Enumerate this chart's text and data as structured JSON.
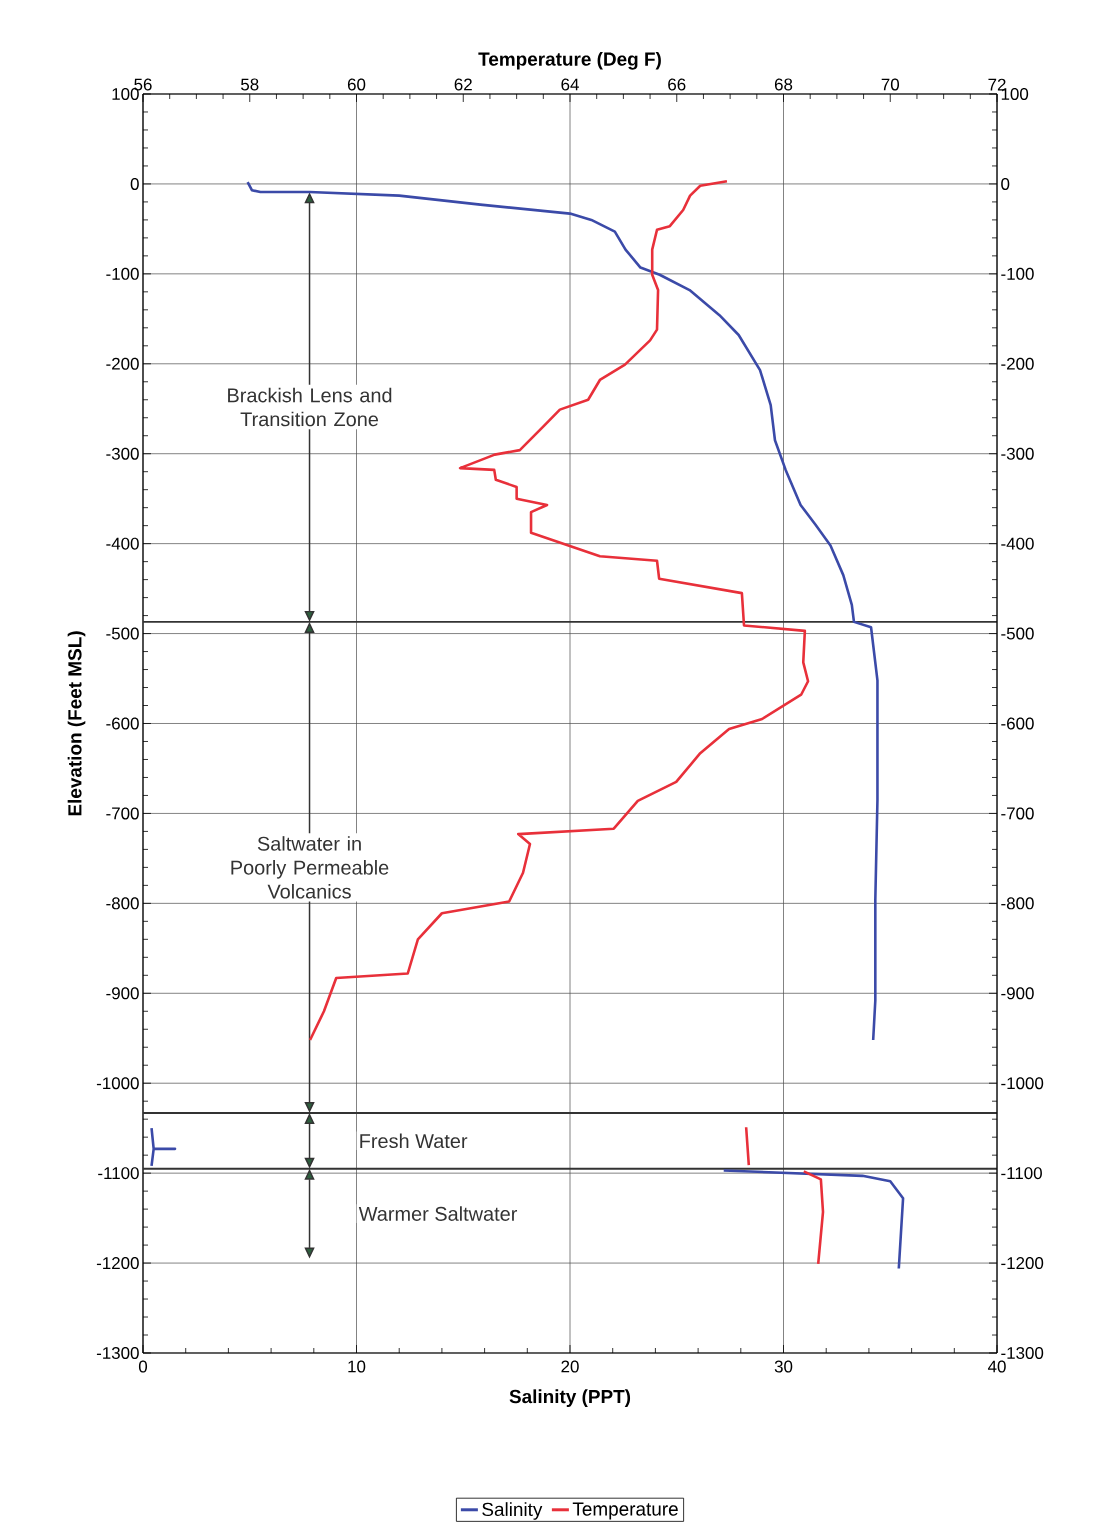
{
  "chart_data": {
    "type": "line",
    "xlabel": "Salinity (PPT)",
    "x2label": "Temperature (Deg F)",
    "ylabel": "Elevation (Feet MSL)",
    "xlim": [
      0,
      40
    ],
    "xticks": [
      0,
      10,
      20,
      30,
      40
    ],
    "x2lim": [
      56,
      72
    ],
    "x2ticks": [
      56,
      58,
      60,
      62,
      64,
      66,
      68,
      70,
      72
    ],
    "ylim": [
      -1300,
      100
    ],
    "yticks": [
      -1300,
      -1200,
      -1100,
      -1000,
      -900,
      -800,
      -700,
      -600,
      -500,
      -400,
      -300,
      -200,
      -100,
      0,
      100
    ],
    "y2lim": [
      -1300,
      100
    ],
    "y2ticks": [
      -1300,
      -1200,
      -1100,
      -1000,
      -900,
      -800,
      -700,
      -600,
      -500,
      -400,
      -300,
      -200,
      -100,
      0,
      100
    ],
    "grid": true,
    "legend": "bottom",
    "series": [
      {
        "name": "Salinity",
        "color": "#3b4aa8",
        "x": [
          4.9,
          5.1,
          5.5,
          7.8,
          12.0,
          15.8,
          20.0,
          21.0,
          22.1,
          22.6,
          23.3,
          24.2,
          25.6,
          27.0,
          27.9,
          28.9,
          29.4,
          29.6,
          30.1,
          30.8,
          31.5,
          32.2,
          32.8,
          33.2,
          33.3,
          34.1,
          34.4,
          34.4,
          34.3,
          34.3,
          34.2,
          null,
          0.4,
          0.5,
          1.5,
          0.5,
          0.4,
          null,
          27.2,
          33.7,
          35.0,
          35.6,
          35.4
        ],
        "values": [
          2,
          -7,
          -9,
          -9,
          -13,
          -23,
          -33,
          -40,
          -53,
          -73,
          -93,
          -101,
          -118,
          -146,
          -168,
          -207,
          -246,
          -285,
          -318,
          -357,
          -379,
          -402,
          -435,
          -468,
          -487,
          -493,
          -552,
          -685,
          -796,
          -908,
          -952,
          null,
          -1050,
          -1073,
          -1073,
          -1073,
          -1092,
          null,
          -1097,
          -1103,
          -1109,
          -1128,
          -1206
        ]
      },
      {
        "name": "Temperature",
        "color": "#e8303a",
        "axis": "x2",
        "x": [
          66.94,
          66.44,
          66.25,
          66.12,
          65.87,
          65.63,
          65.54,
          65.54,
          65.65,
          65.63,
          65.5,
          65.03,
          64.56,
          64.34,
          63.81,
          63.53,
          63.06,
          62.59,
          61.94,
          62.58,
          62.61,
          63.0,
          63.0,
          63.57,
          63.27,
          63.27,
          64.56,
          65.63,
          65.67,
          67.22,
          67.26,
          68.4,
          68.37,
          68.46,
          68.33,
          67.6,
          66.98,
          66.44,
          65.99,
          65.27,
          64.82,
          63.03,
          63.25,
          63.12,
          62.86,
          61.6,
          61.15,
          60.96,
          59.62,
          59.39,
          59.13,
          null,
          67.3,
          67.35,
          null,
          68.38,
          68.7,
          68.74,
          68.65
        ],
        "values": [
          3,
          -2,
          -13,
          -29,
          -47,
          -51,
          -73,
          -101,
          -118,
          -162,
          -174,
          -201,
          -218,
          -240,
          -251,
          -268,
          -296,
          -301,
          -316,
          -318,
          -329,
          -337,
          -350,
          -357,
          -365,
          -388,
          -414,
          -419,
          -439,
          -455,
          -491,
          -497,
          -532,
          -553,
          -568,
          -595,
          -606,
          -633,
          -665,
          -686,
          -717,
          -723,
          -734,
          -766,
          -798,
          -811,
          -840,
          -878,
          -883,
          -920,
          -952,
          null,
          -1049,
          -1091,
          null,
          -1098,
          -1107,
          -1143,
          -1201
        ]
      }
    ],
    "ref_lines": [
      {
        "axis": "y",
        "value": -487,
        "color": "#333333"
      },
      {
        "axis": "y",
        "value": -1033,
        "color": "#333333"
      },
      {
        "axis": "y",
        "value": -1095,
        "color": "#333333"
      }
    ],
    "annotations": [
      "Brackish Lens and Transition Zone",
      "Saltwater in Poorly Permeable Volcanics",
      "Fresh Water",
      "Warmer Saltwater"
    ]
  }
}
